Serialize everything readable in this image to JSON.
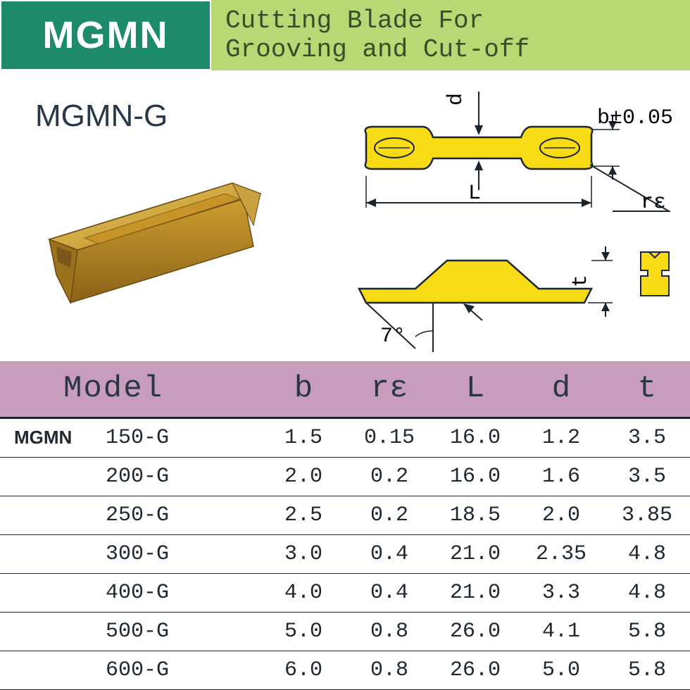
{
  "header": {
    "left_text": "MGMN",
    "left_bg": "#1d8a6b",
    "left_color": "#ffffff",
    "right_line1": "Cutting Blade For",
    "right_line2": "Grooving and Cut-off",
    "right_bg": "#b7d874",
    "right_color": "#335029"
  },
  "diagram": {
    "model_label": "MGMN-G",
    "d_label": "d",
    "L_label": "L",
    "b_label": "b±0.05",
    "re_label": "rε",
    "t_label": "t",
    "angle_label": "7°",
    "insert_fill": "#f6db15",
    "insert_stroke": "#1a2530",
    "gold_dark": "#b98821",
    "gold_mid": "#d7a631",
    "gold_light": "#e9c862"
  },
  "table": {
    "header_bg": "#c89dbb",
    "columns": [
      "Model",
      "b",
      "rε",
      "L",
      "d",
      "t"
    ],
    "prefix": "MGMN",
    "rows": [
      {
        "model": "150-G",
        "b": "1.5",
        "re": "0.15",
        "L": "16.0",
        "d": "1.2",
        "t": "3.5"
      },
      {
        "model": "200-G",
        "b": "2.0",
        "re": "0.2",
        "L": "16.0",
        "d": "1.6",
        "t": "3.5"
      },
      {
        "model": "250-G",
        "b": "2.5",
        "re": "0.2",
        "L": "18.5",
        "d": "2.0",
        "t": "3.85"
      },
      {
        "model": "300-G",
        "b": "3.0",
        "re": "0.4",
        "L": "21.0",
        "d": "2.35",
        "t": "4.8"
      },
      {
        "model": "400-G",
        "b": "4.0",
        "re": "0.4",
        "L": "21.0",
        "d": "3.3",
        "t": "4.8"
      },
      {
        "model": "500-G",
        "b": "5.0",
        "re": "0.8",
        "L": "26.0",
        "d": "4.1",
        "t": "5.8"
      },
      {
        "model": "600-G",
        "b": "6.0",
        "re": "0.8",
        "L": "26.0",
        "d": "5.0",
        "t": "5.8"
      }
    ]
  }
}
